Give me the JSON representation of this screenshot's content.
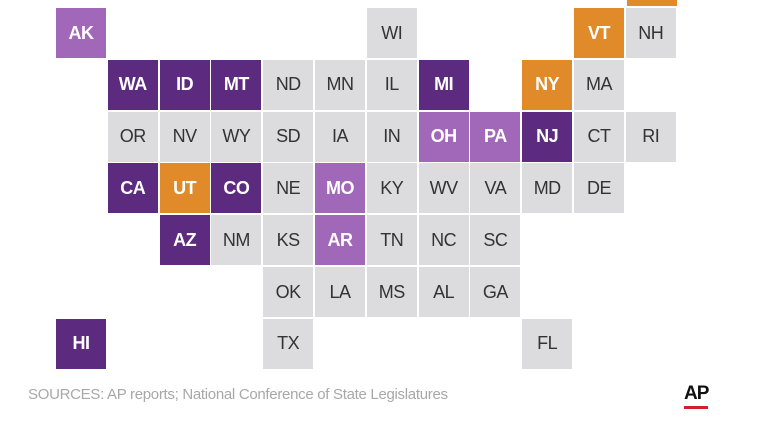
{
  "tiles": [
    {
      "label": "AK",
      "color": "#a167b8"
    },
    {
      "label": "WI",
      "color": "#dcdcde"
    },
    {
      "label": "VT",
      "color": "#e08a2a"
    },
    {
      "label": "NH",
      "color": "#dcdcde"
    },
    {
      "label": "WA",
      "color": "#5c2a7e"
    },
    {
      "label": "ID",
      "color": "#5c2a7e"
    },
    {
      "label": "MT",
      "color": "#5c2a7e"
    },
    {
      "label": "ND",
      "color": "#dcdcde"
    },
    {
      "label": "MN",
      "color": "#dcdcde"
    },
    {
      "label": "IL",
      "color": "#dcdcde"
    },
    {
      "label": "MI",
      "color": "#5c2a7e"
    },
    {
      "label": "NY",
      "color": "#e08a2a"
    },
    {
      "label": "MA",
      "color": "#dcdcde"
    },
    {
      "label": "OR",
      "color": "#dcdcde"
    },
    {
      "label": "NV",
      "color": "#dcdcde"
    },
    {
      "label": "WY",
      "color": "#dcdcde"
    },
    {
      "label": "SD",
      "color": "#dcdcde"
    },
    {
      "label": "IA",
      "color": "#dcdcde"
    },
    {
      "label": "IN",
      "color": "#dcdcde"
    },
    {
      "label": "OH",
      "color": "#a167b8"
    },
    {
      "label": "PA",
      "color": "#a167b8"
    },
    {
      "label": "NJ",
      "color": "#5c2a7e"
    },
    {
      "label": "CT",
      "color": "#dcdcde"
    },
    {
      "label": "RI",
      "color": "#dcdcde"
    },
    {
      "label": "CA",
      "color": "#5c2a7e"
    },
    {
      "label": "UT",
      "color": "#e08a2a"
    },
    {
      "label": "CO",
      "color": "#5c2a7e"
    },
    {
      "label": "NE",
      "color": "#dcdcde"
    },
    {
      "label": "MO",
      "color": "#a167b8"
    },
    {
      "label": "KY",
      "color": "#dcdcde"
    },
    {
      "label": "WV",
      "color": "#dcdcde"
    },
    {
      "label": "VA",
      "color": "#dcdcde"
    },
    {
      "label": "MD",
      "color": "#dcdcde"
    },
    {
      "label": "DE",
      "color": "#dcdcde"
    },
    {
      "label": "AZ",
      "color": "#5c2a7e"
    },
    {
      "label": "NM",
      "color": "#dcdcde"
    },
    {
      "label": "KS",
      "color": "#dcdcde"
    },
    {
      "label": "AR",
      "color": "#a167b8"
    },
    {
      "label": "TN",
      "color": "#dcdcde"
    },
    {
      "label": "NC",
      "color": "#dcdcde"
    },
    {
      "label": "SC",
      "color": "#dcdcde"
    },
    {
      "label": "OK",
      "color": "#dcdcde"
    },
    {
      "label": "LA",
      "color": "#dcdcde"
    },
    {
      "label": "MS",
      "color": "#dcdcde"
    },
    {
      "label": "AL",
      "color": "#dcdcde"
    },
    {
      "label": "GA",
      "color": "#dcdcde"
    },
    {
      "label": "HI",
      "color": "#5c2a7e"
    },
    {
      "label": "TX",
      "color": "#dcdcde"
    },
    {
      "label": "FL",
      "color": "#dcdcde"
    }
  ],
  "source": "SOURCES: AP reports; National Conference of State Legislatures",
  "logo": "AP"
}
